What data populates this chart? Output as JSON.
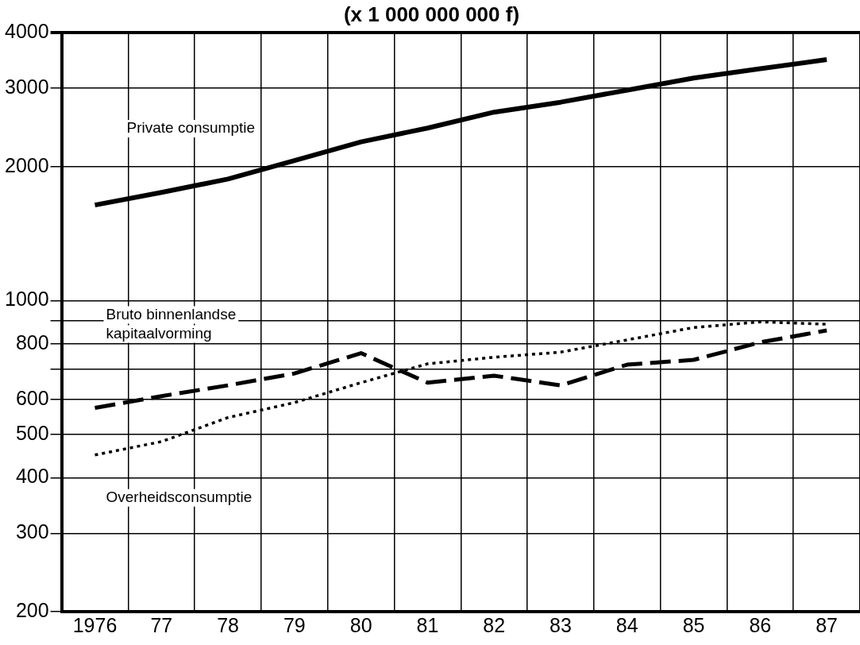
{
  "chart_data": {
    "type": "line",
    "title": "(x 1 000 000 000 f)",
    "categories": [
      "1976",
      "77",
      "78",
      "79",
      "80",
      "81",
      "82",
      "83",
      "84",
      "85",
      "86",
      "87"
    ],
    "series": [
      {
        "name": "Private consumptie",
        "color": "#000000",
        "line_style": "solid",
        "values": [
          1640,
          1750,
          1876,
          2064,
          2274,
          2442,
          2652,
          2792,
          2972,
          3164,
          3320,
          3480
        ]
      },
      {
        "name": "Bruto binnenlandse kapitaalvorming",
        "color": "#000000",
        "line_style": "dashed",
        "values": [
          574,
          610,
          645,
          686,
          762,
          654,
          678,
          645,
          718,
          736,
          806,
          857
        ]
      },
      {
        "name": "Overheidsconsumptie",
        "color": "#000000",
        "line_style": "dotted",
        "values": [
          450,
          482,
          546,
          590,
          654,
          721,
          746,
          766,
          816,
          870,
          896,
          885
        ]
      }
    ],
    "log": "y",
    "ylim": [
      200,
      4000
    ],
    "yticks": [
      200,
      300,
      400,
      500,
      600,
      {
        "value": 700,
        "label": null
      },
      800,
      {
        "value": 900,
        "label": null
      },
      1000,
      2000,
      3000,
      4000
    ],
    "grid": true,
    "legend": false,
    "marker": "none"
  }
}
